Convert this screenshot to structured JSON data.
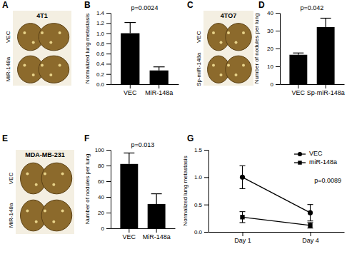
{
  "chart_data": [
    {
      "panel": "B",
      "type": "bar",
      "categories": [
        "VEC",
        "MiR-148a"
      ],
      "values": [
        1.0,
        0.27
      ],
      "errors": [
        0.21,
        0.07
      ],
      "color": "#000000",
      "ylabel": "Normalized lung metastasis",
      "ylim": [
        0,
        1.4
      ],
      "yticks": [
        {
          "value": 0,
          "label": "0.0"
        },
        0.2,
        0.4,
        0.6,
        0.8,
        {
          "value": 1,
          "label": "1.0"
        },
        1.2,
        1.4
      ],
      "annotations": [
        "p=0.0024"
      ]
    },
    {
      "panel": "D",
      "type": "bar",
      "categories": [
        "VEC",
        "Sp-miR-148a"
      ],
      "values": [
        16.5,
        32
      ],
      "errors": [
        1,
        5
      ],
      "color": "#000000",
      "ylabel": "Number of nodules per lung",
      "ylim": [
        0,
        40
      ],
      "yticks": [
        0,
        10,
        20,
        30,
        40
      ],
      "annotations": [
        "p=0.042"
      ]
    },
    {
      "panel": "F",
      "type": "bar",
      "categories": [
        "VEC",
        "MiR-148a"
      ],
      "values": [
        82,
        31
      ],
      "errors": [
        14,
        13
      ],
      "color": "#000000",
      "ylabel": "Number of nodules per lung",
      "ylim": [
        0,
        100
      ],
      "yticks": [
        0,
        20,
        40,
        60,
        80,
        100
      ],
      "annotations": [
        "p=0.013"
      ]
    },
    {
      "panel": "G",
      "type": "line",
      "categories": [
        "Day 1",
        "Day 4"
      ],
      "series": [
        {
          "name": "VEC",
          "color": "#000000",
          "marker": "circle",
          "values": [
            1.0,
            0.35
          ],
          "errors": [
            0.21,
            0.15
          ]
        },
        {
          "name": "miR-148a",
          "color": "#000000",
          "marker": "square",
          "values": [
            0.27,
            0.12
          ],
          "errors": [
            0.1,
            0.05
          ]
        }
      ],
      "ylabel": "Normalized lung metastasis",
      "ylim": [
        0,
        1.5
      ],
      "yticks": [
        {
          "value": 0,
          "label": "0.0"
        },
        0.5,
        {
          "value": 1,
          "label": "1.0"
        },
        1.5
      ],
      "legend": "top-right",
      "annotations": [
        "p=0.0089"
      ]
    }
  ],
  "image_panels": [
    {
      "panel": "A",
      "title": "4T1",
      "labels": [
        "VEC",
        "MiR-148a"
      ]
    },
    {
      "panel": "C",
      "title": "4TO7",
      "labels": [
        "VEC",
        "Sp-miR-148a"
      ]
    },
    {
      "panel": "E",
      "title": "MDA-MB-231",
      "labels": [
        "VEC",
        "MiR-148a"
      ]
    }
  ]
}
